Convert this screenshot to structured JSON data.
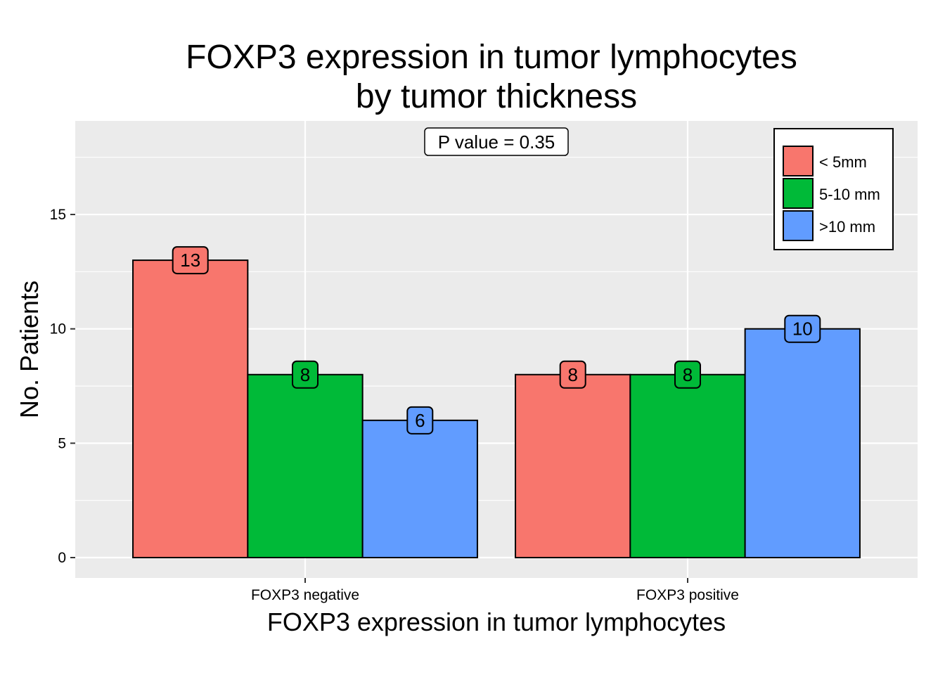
{
  "chart_data": {
    "type": "bar",
    "title": [
      "FOXP3 expression in tumor lymphocytes",
      "by tumor thickness"
    ],
    "xlabel": "FOXP3 expression in tumor lymphocytes",
    "ylabel": "No. Patients",
    "categories": [
      "FOXP3 negative",
      "FOXP3 positive"
    ],
    "series": [
      {
        "name": "< 5mm",
        "color": "#F8766D",
        "values": [
          13,
          8
        ]
      },
      {
        "name": "5-10 mm",
        "color": "#00BA38",
        "values": [
          8,
          8
        ]
      },
      {
        "name": ">10 mm",
        "color": "#619CFF",
        "values": [
          6,
          10
        ]
      }
    ],
    "yticks": [
      0,
      5,
      10,
      15
    ],
    "ylim": [
      -0.9,
      19
    ],
    "grid": true,
    "legend_position": "top-right",
    "annotation": "P value = 0.35",
    "panel_background": "#EBEBEB"
  }
}
